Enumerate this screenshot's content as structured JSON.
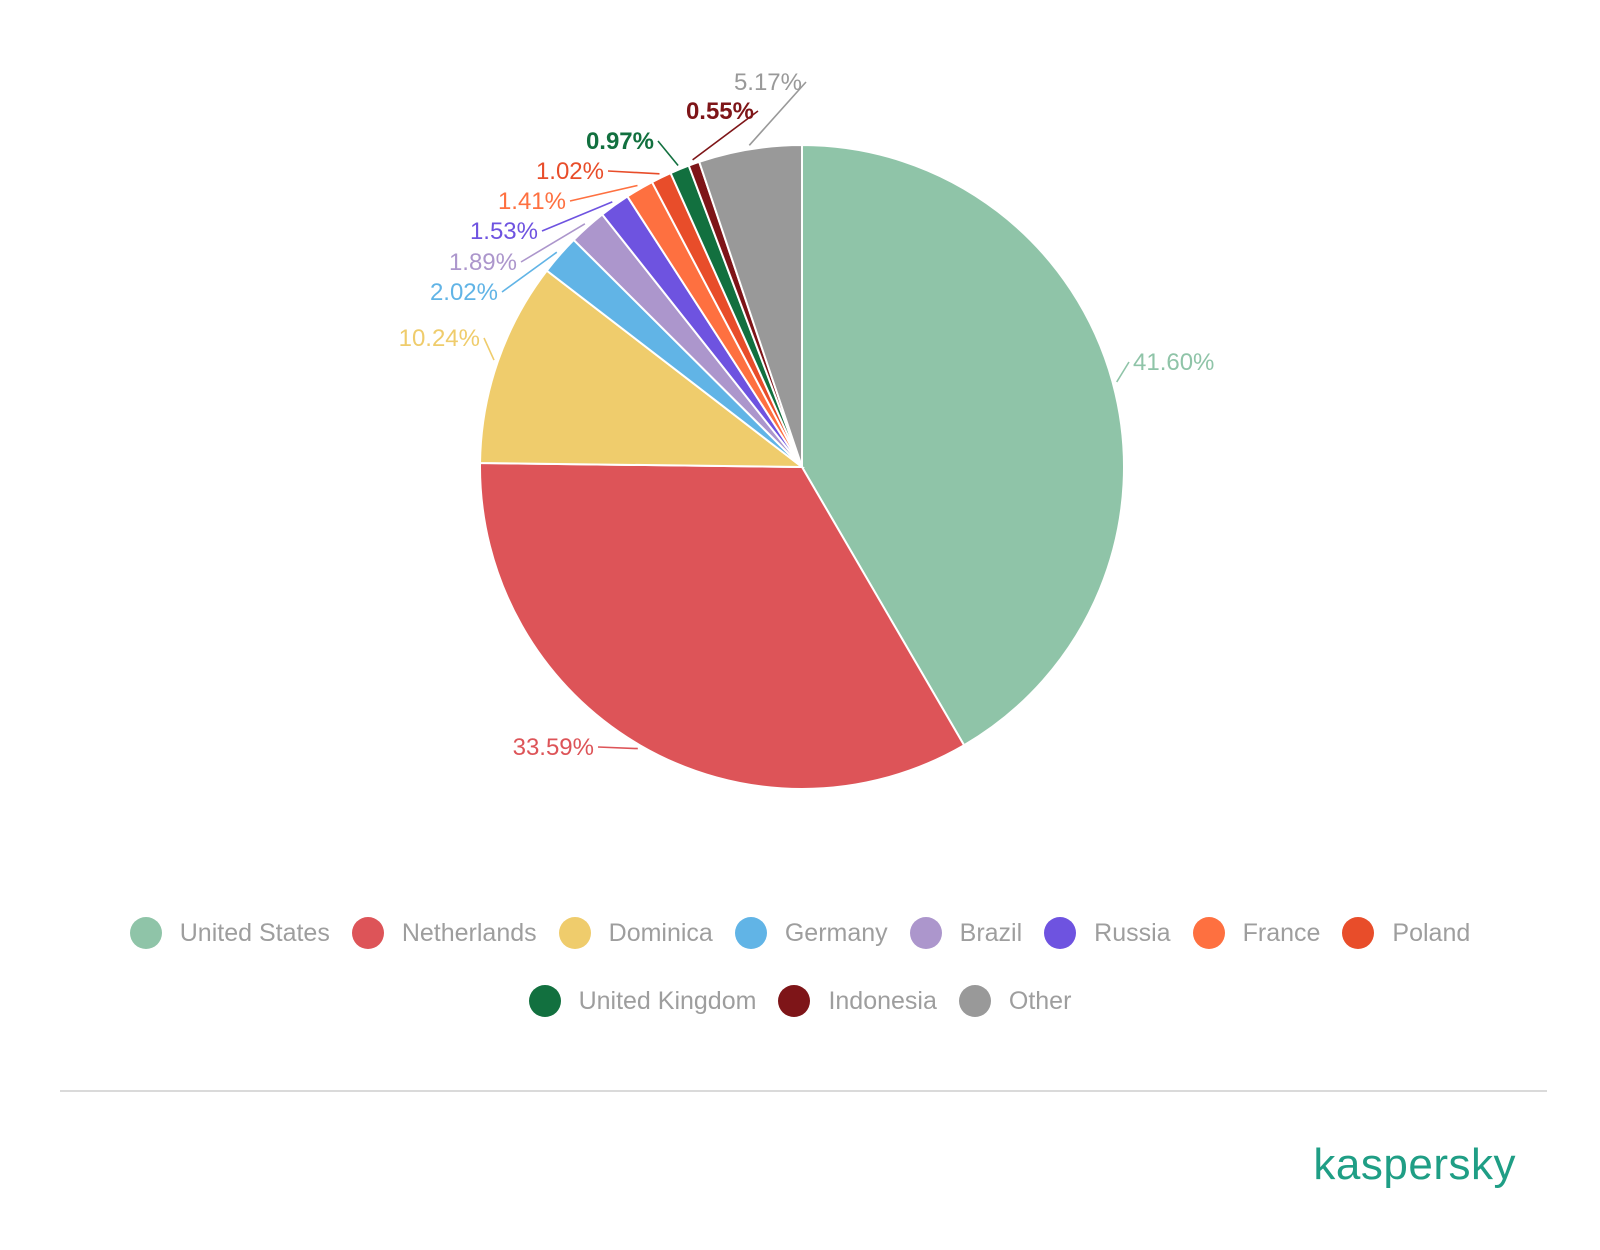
{
  "chart_data": {
    "type": "pie",
    "start": "top",
    "direction": "clockwise",
    "slices": [
      {
        "name": "United States",
        "value": 41.6,
        "label": "41.60%",
        "color": "#8fc4a8"
      },
      {
        "name": "Netherlands",
        "value": 33.59,
        "label": "33.59%",
        "color": "#dd5458"
      },
      {
        "name": "Dominica",
        "value": 10.24,
        "label": "10.24%",
        "color": "#efcc6c"
      },
      {
        "name": "Germany",
        "value": 2.02,
        "label": "2.02%",
        "color": "#61b4e6"
      },
      {
        "name": "Brazil",
        "value": 1.89,
        "label": "1.89%",
        "color": "#ac96cc"
      },
      {
        "name": "Russia",
        "value": 1.53,
        "label": "1.53%",
        "color": "#6e53e0"
      },
      {
        "name": "France",
        "value": 1.41,
        "label": "1.41%",
        "color": "#fe7040"
      },
      {
        "name": "Poland",
        "value": 1.02,
        "label": "1.02%",
        "color": "#e84d2a"
      },
      {
        "name": "United Kingdom",
        "value": 0.97,
        "label": "0.97%",
        "color": "#12703f"
      },
      {
        "name": "Indonesia",
        "value": 0.55,
        "label": "0.55%",
        "color": "#7e1518"
      },
      {
        "name": "Other",
        "value": 5.17,
        "label": "5.17%",
        "color": "#999999"
      }
    ],
    "legend_position": "bottom"
  },
  "legend": {
    "rows": [
      [
        "United States",
        "Netherlands",
        "Dominica",
        "Germany",
        "Brazil",
        "Russia",
        "France",
        "Poland"
      ],
      [
        "United Kingdom",
        "Indonesia",
        "Other"
      ]
    ]
  },
  "brand": {
    "name": "kaspersky",
    "color": "#1f9e85"
  }
}
